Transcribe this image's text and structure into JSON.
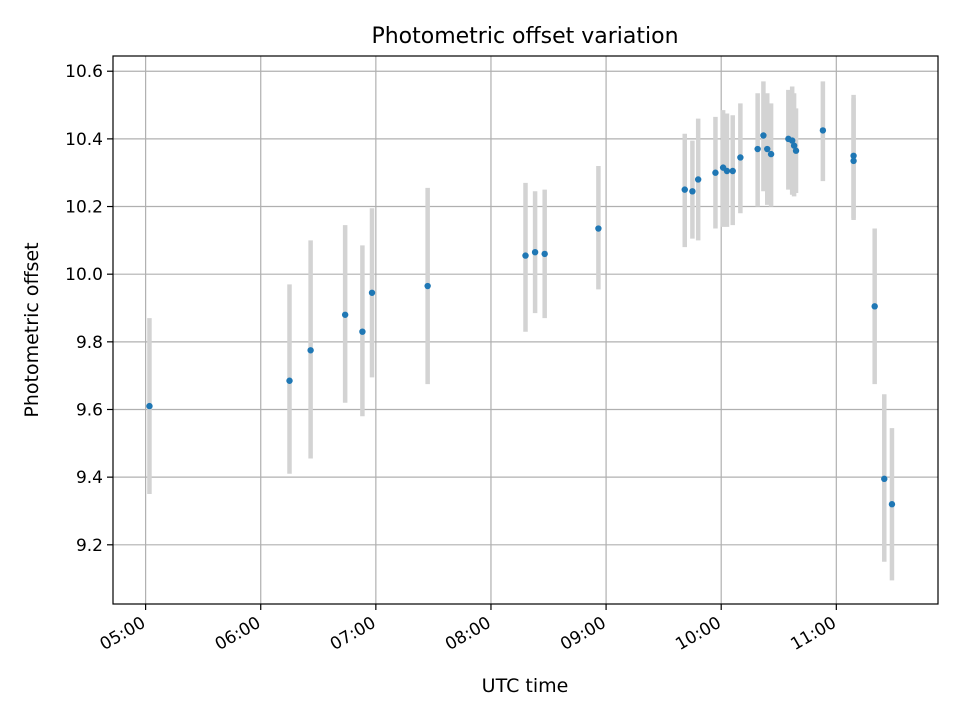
{
  "chart_data": {
    "type": "scatter",
    "title": "Photometric offset variation",
    "xlabel": "UTC time",
    "ylabel": "Photometric offset",
    "x_ticks": [
      "05:00",
      "06:00",
      "07:00",
      "08:00",
      "09:00",
      "10:00",
      "11:00"
    ],
    "y_ticks": [
      "9.2",
      "9.4",
      "9.6",
      "9.8",
      "10.0",
      "10.2",
      "10.4",
      "10.6"
    ],
    "xlim": [
      "04:43",
      "11:53"
    ],
    "ylim": [
      9.025,
      10.645
    ],
    "grid": true,
    "colors": {
      "points": "#1f77b4",
      "errorbars": "#d3d3d3",
      "grid": "#b0b0b0"
    },
    "points": [
      {
        "t": "05:02",
        "y": 9.61,
        "lo": 9.35,
        "hi": 9.87
      },
      {
        "t": "06:15",
        "y": 9.685,
        "lo": 9.41,
        "hi": 9.97
      },
      {
        "t": "06:26",
        "y": 9.775,
        "lo": 9.455,
        "hi": 10.1
      },
      {
        "t": "06:44",
        "y": 9.88,
        "lo": 9.62,
        "hi": 10.145
      },
      {
        "t": "06:53",
        "y": 9.83,
        "lo": 9.58,
        "hi": 10.085
      },
      {
        "t": "06:58",
        "y": 9.945,
        "lo": 9.695,
        "hi": 10.195
      },
      {
        "t": "07:27",
        "y": 9.965,
        "lo": 9.675,
        "hi": 10.255
      },
      {
        "t": "08:18",
        "y": 10.055,
        "lo": 9.83,
        "hi": 10.27
      },
      {
        "t": "08:23",
        "y": 10.065,
        "lo": 9.885,
        "hi": 10.245
      },
      {
        "t": "08:28",
        "y": 10.06,
        "lo": 9.87,
        "hi": 10.25
      },
      {
        "t": "08:56",
        "y": 10.135,
        "lo": 9.955,
        "hi": 10.32
      },
      {
        "t": "09:41",
        "y": 10.25,
        "lo": 10.08,
        "hi": 10.415
      },
      {
        "t": "09:45",
        "y": 10.245,
        "lo": 10.105,
        "hi": 10.395
      },
      {
        "t": "09:48",
        "y": 10.28,
        "lo": 10.1,
        "hi": 10.46
      },
      {
        "t": "09:57",
        "y": 10.3,
        "lo": 10.135,
        "hi": 10.465
      },
      {
        "t": "10:01",
        "y": 10.315,
        "lo": 10.14,
        "hi": 10.485
      },
      {
        "t": "10:03",
        "y": 10.305,
        "lo": 10.14,
        "hi": 10.475
      },
      {
        "t": "10:06",
        "y": 10.305,
        "lo": 10.145,
        "hi": 10.47
      },
      {
        "t": "10:10",
        "y": 10.345,
        "lo": 10.18,
        "hi": 10.505
      },
      {
        "t": "10:19",
        "y": 10.37,
        "lo": 10.2,
        "hi": 10.535
      },
      {
        "t": "10:22",
        "y": 10.41,
        "lo": 10.245,
        "hi": 10.57
      },
      {
        "t": "10:24",
        "y": 10.37,
        "lo": 10.205,
        "hi": 10.535
      },
      {
        "t": "10:26",
        "y": 10.355,
        "lo": 10.2,
        "hi": 10.505
      },
      {
        "t": "10:35",
        "y": 10.4,
        "lo": 10.25,
        "hi": 10.545
      },
      {
        "t": "10:37",
        "y": 10.395,
        "lo": 10.235,
        "hi": 10.555
      },
      {
        "t": "10:38",
        "y": 10.38,
        "lo": 10.23,
        "hi": 10.535
      },
      {
        "t": "10:39",
        "y": 10.365,
        "lo": 10.24,
        "hi": 10.49
      },
      {
        "t": "10:53",
        "y": 10.425,
        "lo": 10.275,
        "hi": 10.57
      },
      {
        "t": "11:09",
        "y": 10.35,
        "lo": 10.165,
        "hi": 10.53
      },
      {
        "t": "11:09",
        "y": 10.335,
        "lo": 10.16,
        "hi": 10.52
      },
      {
        "t": "11:20",
        "y": 9.905,
        "lo": 9.675,
        "hi": 10.135
      },
      {
        "t": "11:25",
        "y": 9.395,
        "lo": 9.15,
        "hi": 9.645
      },
      {
        "t": "11:29",
        "y": 9.32,
        "lo": 9.095,
        "hi": 9.545
      }
    ]
  }
}
